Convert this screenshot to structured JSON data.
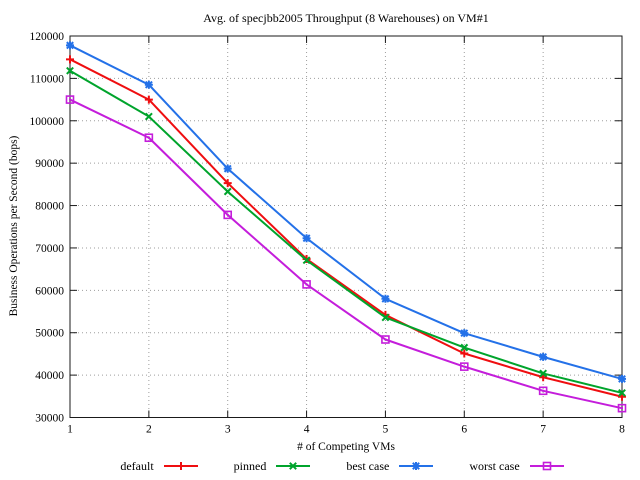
{
  "title": "Avg. of specjbb2005 Throughput (8 Warehouses) on VM#1",
  "chart_data": {
    "type": "line",
    "title": "Avg. of specjbb2005 Throughput (8 Warehouses) on VM#1",
    "xlabel": "# of Competing VMs",
    "ylabel": "Business Operations per Second (bops)",
    "x": [
      1,
      2,
      3,
      4,
      5,
      6,
      7,
      8
    ],
    "xlim": [
      1,
      8
    ],
    "ylim": [
      30000,
      120000
    ],
    "ytick_step": 10000,
    "ytick_labels": [
      "30000",
      "40000",
      "50000",
      "60000",
      "70000",
      "80000",
      "90000",
      "100000",
      "110000",
      "120000"
    ],
    "xtick_labels": [
      "1",
      "2",
      "3",
      "4",
      "5",
      "6",
      "7",
      "8"
    ],
    "grid": true,
    "legend_position": "bottom",
    "series": [
      {
        "name": "default",
        "color": "#ef0e10",
        "marker": "plus",
        "values": [
          114500,
          105000,
          85300,
          67400,
          54200,
          45100,
          39500,
          34900
        ]
      },
      {
        "name": "pinned",
        "color": "#00a42c",
        "marker": "cross",
        "values": [
          111800,
          101000,
          83300,
          67100,
          53600,
          46500,
          40400,
          35800
        ]
      },
      {
        "name": "best case",
        "color": "#2471e8",
        "marker": "asterisk",
        "values": [
          117800,
          108500,
          88700,
          72300,
          58000,
          49900,
          44300,
          39100
        ]
      },
      {
        "name": "worst case",
        "color": "#c41ddb",
        "marker": "square",
        "values": [
          105000,
          96000,
          77800,
          61400,
          48400,
          42000,
          36300,
          32200
        ]
      }
    ],
    "style": {
      "grid_color": "#9e9e9e",
      "border_color": "#1a1a1a",
      "background": "#ffffff"
    }
  }
}
